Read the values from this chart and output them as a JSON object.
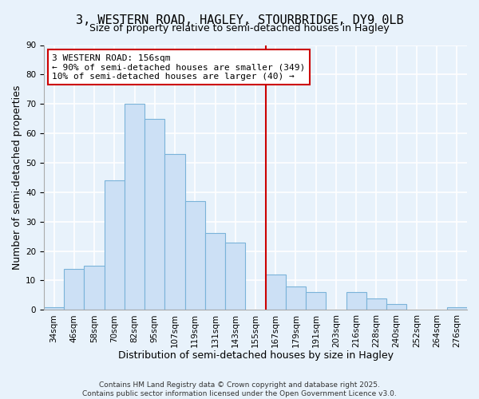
{
  "title": "3, WESTERN ROAD, HAGLEY, STOURBRIDGE, DY9 0LB",
  "subtitle": "Size of property relative to semi-detached houses in Hagley",
  "xlabel": "Distribution of semi-detached houses by size in Hagley",
  "ylabel": "Number of semi-detached properties",
  "bar_labels": [
    "34sqm",
    "46sqm",
    "58sqm",
    "70sqm",
    "82sqm",
    "95sqm",
    "107sqm",
    "119sqm",
    "131sqm",
    "143sqm",
    "155sqm",
    "167sqm",
    "179sqm",
    "191sqm",
    "203sqm",
    "216sqm",
    "228sqm",
    "240sqm",
    "252sqm",
    "264sqm",
    "276sqm"
  ],
  "bar_values": [
    1,
    14,
    15,
    44,
    70,
    65,
    53,
    37,
    26,
    23,
    0,
    12,
    8,
    6,
    0,
    6,
    4,
    2,
    0,
    0,
    1
  ],
  "bar_color": "#cce0f5",
  "bar_edge_color": "#7ab3d9",
  "vline_x_idx": 10.5,
  "vline_color": "#cc0000",
  "ylim": [
    0,
    90
  ],
  "annotation_text": "3 WESTERN ROAD: 156sqm\n← 90% of semi-detached houses are smaller (349)\n10% of semi-detached houses are larger (40) →",
  "annotation_box_color": "#ffffff",
  "annotation_box_edge": "#cc0000",
  "footer1": "Contains HM Land Registry data © Crown copyright and database right 2025.",
  "footer2": "Contains public sector information licensed under the Open Government Licence v3.0.",
  "background_color": "#e8f2fb",
  "grid_color": "#ffffff",
  "title_fontsize": 11,
  "subtitle_fontsize": 9,
  "axis_label_fontsize": 9,
  "tick_fontsize": 7.5,
  "annotation_fontsize": 8,
  "footer_fontsize": 6.5
}
